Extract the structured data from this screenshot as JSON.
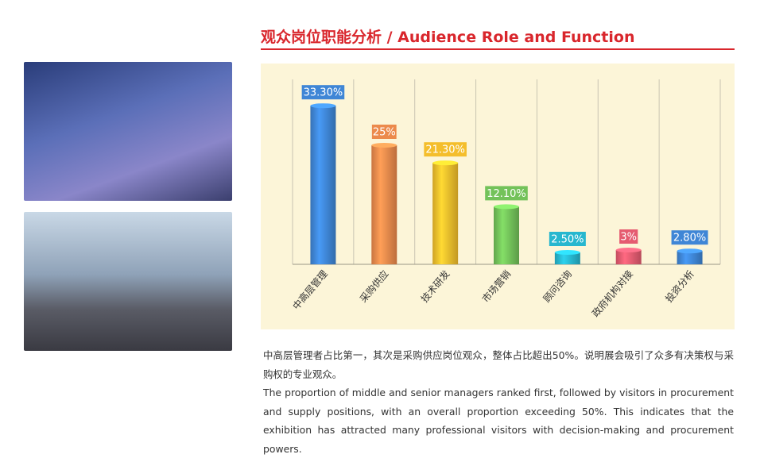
{
  "header": {
    "title": "观众岗位职能分析 / Audience Role and Function"
  },
  "chart_data": {
    "type": "bar",
    "categories": [
      "中高层管理",
      "采购供应",
      "技术研发",
      "市场营销",
      "顾问咨询",
      "政府机构对接",
      "投资分析"
    ],
    "values": [
      33.3,
      25,
      21.3,
      12.1,
      2.5,
      3,
      2.8
    ],
    "value_labels": [
      "33.30%",
      "25%",
      "21.30%",
      "12.10%",
      "2.50%",
      "3%",
      "2.80%"
    ],
    "colors": [
      "#3f86d6",
      "#ec8a4c",
      "#f4be2c",
      "#73c25a",
      "#27b7cf",
      "#e55b70",
      "#3f86d6"
    ],
    "grid": true
  },
  "body": {
    "paragraphs": [
      "中高层管理者占比第一，其次是采购供应岗位观众，整体占比超出50%。说明展会吸引了众多有决策权与采购权的专业观众。",
      "The proportion of middle and senior managers ranked first, followed by visitors in procurement and supply positions, with an overall proportion exceeding 50%. This indicates that the exhibition has attracted many professional visitors with decision-making and procurement powers."
    ]
  }
}
